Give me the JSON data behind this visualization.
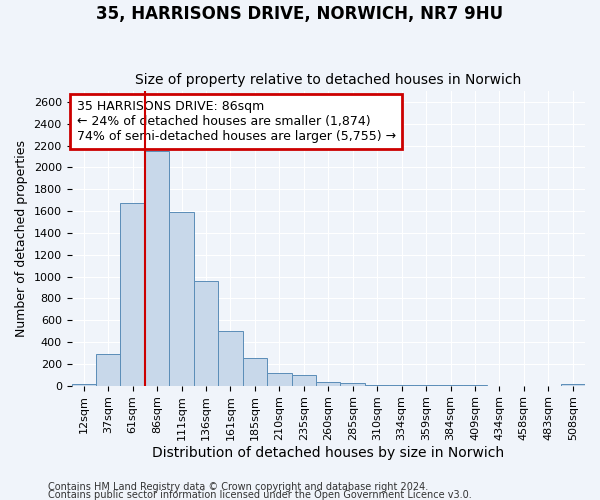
{
  "title": "35, HARRISONS DRIVE, NORWICH, NR7 9HU",
  "subtitle": "Size of property relative to detached houses in Norwich",
  "xlabel": "Distribution of detached houses by size in Norwich",
  "ylabel": "Number of detached properties",
  "footnote1": "Contains HM Land Registry data © Crown copyright and database right 2024.",
  "footnote2": "Contains public sector information licensed under the Open Government Licence v3.0.",
  "bar_labels": [
    "12sqm",
    "37sqm",
    "61sqm",
    "86sqm",
    "111sqm",
    "136sqm",
    "161sqm",
    "185sqm",
    "210sqm",
    "235sqm",
    "260sqm",
    "285sqm",
    "310sqm",
    "334sqm",
    "359sqm",
    "384sqm",
    "409sqm",
    "434sqm",
    "458sqm",
    "483sqm",
    "508sqm"
  ],
  "bar_values": [
    15,
    295,
    1670,
    2150,
    1590,
    960,
    500,
    250,
    120,
    95,
    35,
    25,
    10,
    8,
    5,
    3,
    5,
    2,
    2,
    1,
    15
  ],
  "bar_color": "#c8d8ea",
  "bar_edge_color": "#5b8db8",
  "annotation_title": "35 HARRISONS DRIVE: 86sqm",
  "annotation_line1": "← 24% of detached houses are smaller (1,874)",
  "annotation_line2": "74% of semi-detached houses are larger (5,755) →",
  "annotation_box_color": "#cc0000",
  "ylim_max": 2700,
  "yticks": [
    0,
    200,
    400,
    600,
    800,
    1000,
    1200,
    1400,
    1600,
    1800,
    2000,
    2200,
    2400,
    2600
  ],
  "background_color": "#f0f4fa",
  "grid_color": "#ffffff",
  "title_fontsize": 12,
  "subtitle_fontsize": 10,
  "ylabel_fontsize": 9,
  "xlabel_fontsize": 10,
  "tick_fontsize": 8,
  "annot_fontsize": 9,
  "footnote_fontsize": 7
}
